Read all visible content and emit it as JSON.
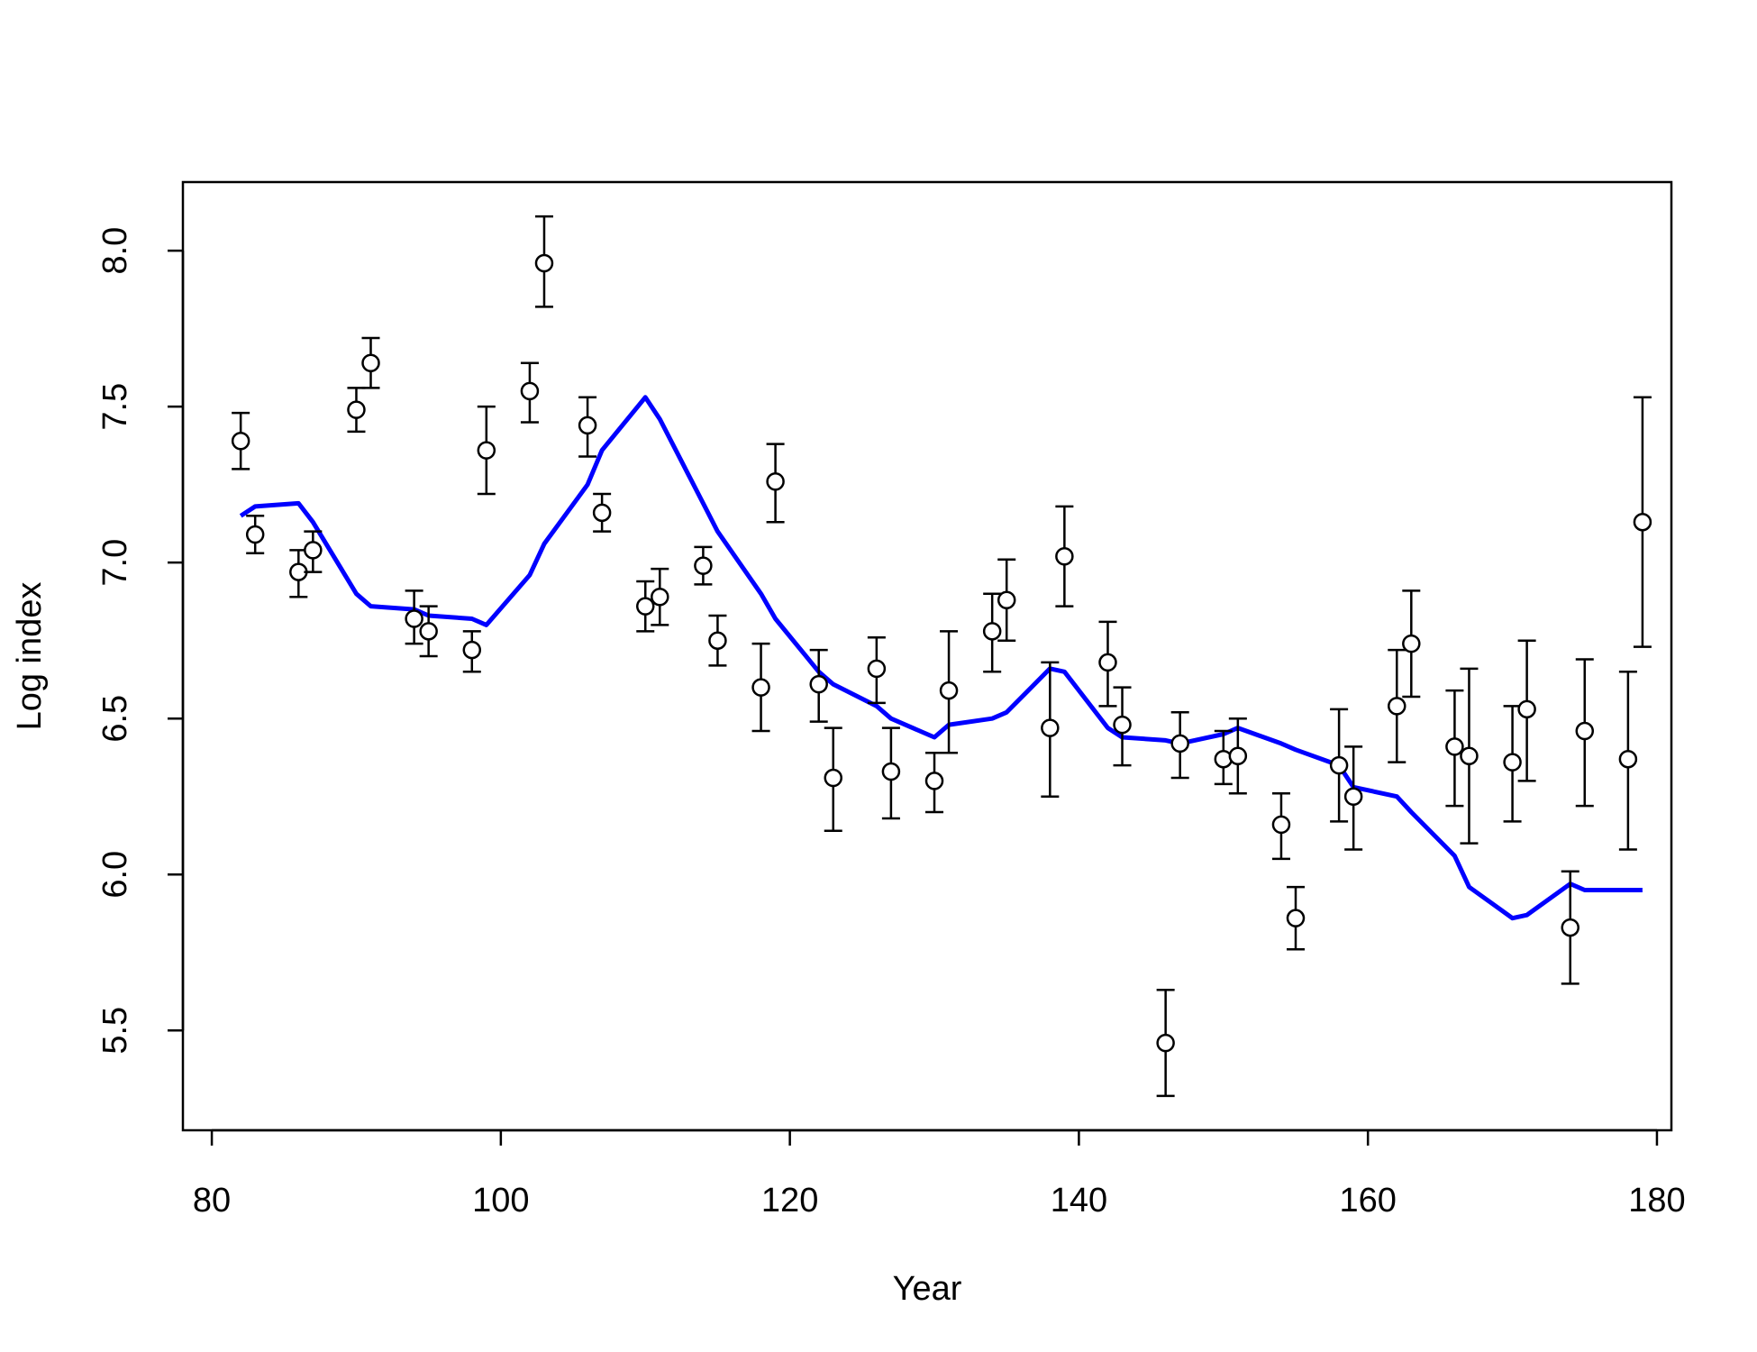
{
  "chart_data": {
    "type": "scatter",
    "title": "",
    "xlabel": "Year",
    "ylabel": "Log index",
    "xlim": [
      78,
      181
    ],
    "ylim": [
      5.18,
      8.22
    ],
    "xticks": [
      80,
      100,
      120,
      140,
      160,
      180
    ],
    "yticks": [
      5.5,
      6.0,
      6.5,
      7.0,
      7.5,
      8.0
    ],
    "grid": false,
    "legend": "none",
    "observed_color": "#000000",
    "fitted_color": "#0000ff",
    "observed": [
      {
        "x": 82,
        "y": 7.39,
        "lo": 7.3,
        "hi": 7.48
      },
      {
        "x": 83,
        "y": 7.09,
        "lo": 7.03,
        "hi": 7.15
      },
      {
        "x": 86,
        "y": 6.97,
        "lo": 6.89,
        "hi": 7.04
      },
      {
        "x": 87,
        "y": 7.04,
        "lo": 6.97,
        "hi": 7.1
      },
      {
        "x": 90,
        "y": 7.49,
        "lo": 7.42,
        "hi": 7.56
      },
      {
        "x": 91,
        "y": 7.64,
        "lo": 7.56,
        "hi": 7.72
      },
      {
        "x": 94,
        "y": 6.82,
        "lo": 6.74,
        "hi": 6.91
      },
      {
        "x": 95,
        "y": 6.78,
        "lo": 6.7,
        "hi": 6.86
      },
      {
        "x": 98,
        "y": 6.72,
        "lo": 6.65,
        "hi": 6.78
      },
      {
        "x": 99,
        "y": 7.36,
        "lo": 7.22,
        "hi": 7.5
      },
      {
        "x": 102,
        "y": 7.55,
        "lo": 7.45,
        "hi": 7.64
      },
      {
        "x": 103,
        "y": 7.96,
        "lo": 7.82,
        "hi": 8.11
      },
      {
        "x": 106,
        "y": 7.44,
        "lo": 7.34,
        "hi": 7.53
      },
      {
        "x": 107,
        "y": 7.16,
        "lo": 7.1,
        "hi": 7.22
      },
      {
        "x": 110,
        "y": 6.86,
        "lo": 6.78,
        "hi": 6.94
      },
      {
        "x": 111,
        "y": 6.89,
        "lo": 6.8,
        "hi": 6.98
      },
      {
        "x": 114,
        "y": 6.99,
        "lo": 6.93,
        "hi": 7.05
      },
      {
        "x": 115,
        "y": 6.75,
        "lo": 6.67,
        "hi": 6.83
      },
      {
        "x": 118,
        "y": 6.6,
        "lo": 6.46,
        "hi": 6.74
      },
      {
        "x": 119,
        "y": 7.26,
        "lo": 7.13,
        "hi": 7.38
      },
      {
        "x": 122,
        "y": 6.61,
        "lo": 6.49,
        "hi": 6.72
      },
      {
        "x": 123,
        "y": 6.31,
        "lo": 6.14,
        "hi": 6.47
      },
      {
        "x": 126,
        "y": 6.66,
        "lo": 6.55,
        "hi": 6.76
      },
      {
        "x": 127,
        "y": 6.33,
        "lo": 6.18,
        "hi": 6.47
      },
      {
        "x": 130,
        "y": 6.3,
        "lo": 6.2,
        "hi": 6.39
      },
      {
        "x": 131,
        "y": 6.59,
        "lo": 6.39,
        "hi": 6.78
      },
      {
        "x": 134,
        "y": 6.78,
        "lo": 6.65,
        "hi": 6.9
      },
      {
        "x": 135,
        "y": 6.88,
        "lo": 6.75,
        "hi": 7.01
      },
      {
        "x": 138,
        "y": 6.47,
        "lo": 6.25,
        "hi": 6.68
      },
      {
        "x": 139,
        "y": 7.02,
        "lo": 6.86,
        "hi": 7.18
      },
      {
        "x": 142,
        "y": 6.68,
        "lo": 6.54,
        "hi": 6.81
      },
      {
        "x": 143,
        "y": 6.48,
        "lo": 6.35,
        "hi": 6.6
      },
      {
        "x": 146,
        "y": 5.46,
        "lo": 5.29,
        "hi": 5.63
      },
      {
        "x": 147,
        "y": 6.42,
        "lo": 6.31,
        "hi": 6.52
      },
      {
        "x": 150,
        "y": 6.37,
        "lo": 6.29,
        "hi": 6.46
      },
      {
        "x": 151,
        "y": 6.38,
        "lo": 6.26,
        "hi": 6.5
      },
      {
        "x": 154,
        "y": 6.16,
        "lo": 6.05,
        "hi": 6.26
      },
      {
        "x": 155,
        "y": 5.86,
        "lo": 5.76,
        "hi": 5.96
      },
      {
        "x": 158,
        "y": 6.35,
        "lo": 6.17,
        "hi": 6.53
      },
      {
        "x": 159,
        "y": 6.25,
        "lo": 6.08,
        "hi": 6.41
      },
      {
        "x": 162,
        "y": 6.54,
        "lo": 6.36,
        "hi": 6.72
      },
      {
        "x": 163,
        "y": 6.74,
        "lo": 6.57,
        "hi": 6.91
      },
      {
        "x": 166,
        "y": 6.41,
        "lo": 6.22,
        "hi": 6.59
      },
      {
        "x": 167,
        "y": 6.38,
        "lo": 6.1,
        "hi": 6.66
      },
      {
        "x": 170,
        "y": 6.36,
        "lo": 6.17,
        "hi": 6.54
      },
      {
        "x": 171,
        "y": 6.53,
        "lo": 6.3,
        "hi": 6.75
      },
      {
        "x": 174,
        "y": 5.83,
        "lo": 5.65,
        "hi": 6.01
      },
      {
        "x": 175,
        "y": 6.46,
        "lo": 6.22,
        "hi": 6.69
      },
      {
        "x": 178,
        "y": 6.37,
        "lo": 6.08,
        "hi": 6.65
      },
      {
        "x": 179,
        "y": 7.13,
        "lo": 6.73,
        "hi": 7.53
      }
    ],
    "fitted": {
      "x": [
        82,
        83,
        86,
        87,
        90,
        91,
        94,
        95,
        98,
        99,
        102,
        103,
        106,
        107,
        110,
        111,
        114,
        115,
        118,
        119,
        122,
        123,
        126,
        127,
        130,
        131,
        134,
        135,
        138,
        139,
        142,
        143,
        146,
        147,
        150,
        151,
        154,
        155,
        158,
        159,
        162,
        163,
        166,
        167,
        170,
        171,
        174,
        175,
        178,
        179
      ],
      "y": [
        7.15,
        7.18,
        7.19,
        7.13,
        6.9,
        6.86,
        6.85,
        6.83,
        6.82,
        6.8,
        6.96,
        7.06,
        7.25,
        7.36,
        7.53,
        7.46,
        7.19,
        7.1,
        6.9,
        6.82,
        6.65,
        6.61,
        6.54,
        6.5,
        6.44,
        6.48,
        6.5,
        6.52,
        6.66,
        6.65,
        6.47,
        6.44,
        6.43,
        6.42,
        6.45,
        6.47,
        6.42,
        6.4,
        6.35,
        6.28,
        6.25,
        6.2,
        6.06,
        5.96,
        5.86,
        5.87,
        5.97,
        5.95,
        5.95,
        5.95
      ]
    }
  }
}
